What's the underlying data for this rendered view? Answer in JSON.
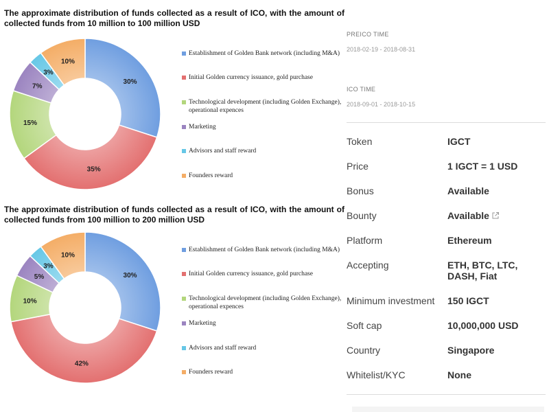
{
  "charts": [
    {
      "title": "The approximate distribution of funds collected as a result of ICO, with the amount of collected funds from 10 million to 100 million USD",
      "legend": [
        {
          "label": "Establishment of Golden Bank network (including M&A)",
          "color": "#6f9ee0"
        },
        {
          "label": "Initial Golden currency issuance, gold purchase",
          "color": "#e37070"
        },
        {
          "label": "Technological development (including Golden Exchange), operational expences",
          "color": "#b3d67c"
        },
        {
          "label": "Marketing",
          "color": "#9b84c0"
        },
        {
          "label": "Advisors and staff reward",
          "color": "#66c7e6"
        },
        {
          "label": "Founders reward",
          "color": "#f4ad66"
        }
      ],
      "chart_data": {
        "type": "pie",
        "categories": [
          "Establishment of Golden Bank network (including M&A)",
          "Initial Golden currency issuance, gold purchase",
          "Technological development (including Golden Exchange), operational expences",
          "Marketing",
          "Advisors and staff reward",
          "Founders reward"
        ],
        "values": [
          30,
          35,
          15,
          7,
          3,
          10
        ],
        "labels": [
          "30%",
          "35%",
          "15%",
          "7%",
          "3%",
          "10%"
        ],
        "colors": [
          "#6f9ee0",
          "#e37070",
          "#b3d67c",
          "#9b84c0",
          "#66c7e6",
          "#f4ad66"
        ],
        "donut": true,
        "legend_position": "right"
      }
    },
    {
      "title": "The approximate distribution of funds collected as a result of ICO, with the amount of collected funds from 100 million to 200 million USD",
      "legend": [
        {
          "label": "Establishment of Golden Bank network (including M&A)",
          "color": "#6f9ee0"
        },
        {
          "label": "Initial Golden currency issuance, gold purchase",
          "color": "#e37070"
        },
        {
          "label": "Technological development (including Golden Exchange), operational expences",
          "color": "#b3d67c"
        },
        {
          "label": "Marketing",
          "color": "#9b84c0"
        },
        {
          "label": "Advisors and staff reward",
          "color": "#66c7e6"
        },
        {
          "label": "Founders reward",
          "color": "#f4ad66"
        }
      ],
      "chart_data": {
        "type": "pie",
        "categories": [
          "Establishment of Golden Bank network (including M&A)",
          "Initial Golden currency issuance, gold purchase",
          "Technological development (including Golden Exchange), operational expences",
          "Marketing",
          "Advisors and staff reward",
          "Founders reward"
        ],
        "values": [
          30,
          42,
          10,
          5,
          3,
          10
        ],
        "labels": [
          "30%",
          "42%",
          "10%",
          "5%",
          "3%",
          "10%"
        ],
        "colors": [
          "#6f9ee0",
          "#e37070",
          "#b3d67c",
          "#9b84c0",
          "#66c7e6",
          "#f4ad66"
        ],
        "donut": true,
        "legend_position": "right"
      }
    }
  ],
  "preico": {
    "label": "PREICO TIME",
    "value": "2018-02-19 - 2018-08-31"
  },
  "ico": {
    "label": "ICO TIME",
    "value": "2018-09-01 - 2018-10-15"
  },
  "details": [
    {
      "label": "Token",
      "value": "IGCT"
    },
    {
      "label": "Price",
      "value": "1 IGCT = 1 USD"
    },
    {
      "label": "Bonus",
      "value": "Available"
    },
    {
      "label": "Bounty",
      "value": "Available",
      "icon": "external-link-icon"
    },
    {
      "label": "Platform",
      "value": "Ethereum"
    },
    {
      "label": "Accepting",
      "value": "ETH, BTC, LTC, DASH, Fiat"
    },
    {
      "label": "Minimum investment",
      "value": "150 IGCT"
    },
    {
      "label": "Soft cap",
      "value": "10,000,000 USD"
    },
    {
      "label": "Country",
      "value": "Singapore"
    },
    {
      "label": "Whitelist/KYC",
      "value": "None"
    }
  ]
}
